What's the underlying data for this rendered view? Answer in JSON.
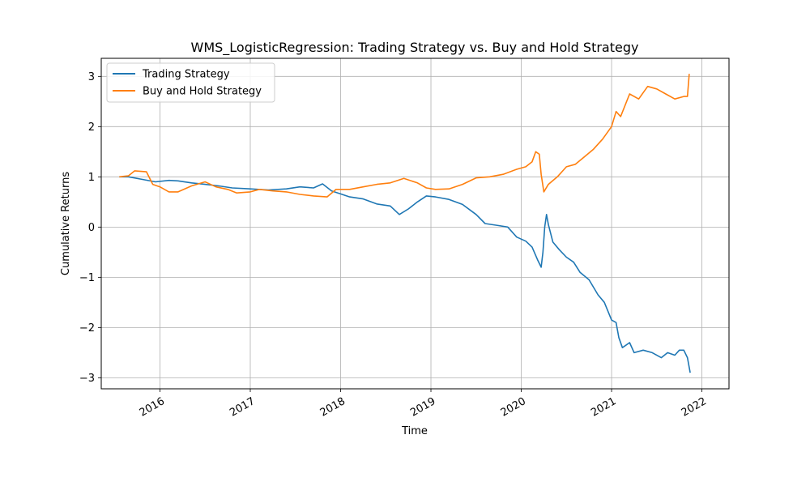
{
  "chart_data": {
    "type": "line",
    "title": "WMS_LogisticRegression: Trading Strategy vs. Buy and Hold Strategy",
    "xlabel": "Time",
    "ylabel": "Cumulative Returns",
    "xlim": [
      2015.35,
      2022.3
    ],
    "ylim": [
      -3.22,
      3.36
    ],
    "grid": true,
    "legend_position": "upper-left",
    "x_ticks": [
      {
        "value": 2016,
        "label": "2016"
      },
      {
        "value": 2017,
        "label": "2017"
      },
      {
        "value": 2018,
        "label": "2018"
      },
      {
        "value": 2019,
        "label": "2019"
      },
      {
        "value": 2020,
        "label": "2020"
      },
      {
        "value": 2021,
        "label": "2021"
      },
      {
        "value": 2022,
        "label": "2022"
      }
    ],
    "y_ticks": [
      {
        "value": 3,
        "label": "3"
      },
      {
        "value": 2,
        "label": "2"
      },
      {
        "value": 1,
        "label": "1"
      },
      {
        "value": 0,
        "label": "0"
      },
      {
        "value": -1,
        "label": "−1"
      },
      {
        "value": -2,
        "label": "−2"
      },
      {
        "value": -3,
        "label": "−3"
      }
    ],
    "series": [
      {
        "name": "Trading Strategy",
        "color": "#1f77b4",
        "points": [
          [
            2015.55,
            1.0
          ],
          [
            2015.65,
            1.0
          ],
          [
            2015.8,
            0.95
          ],
          [
            2015.95,
            0.9
          ],
          [
            2016.1,
            0.93
          ],
          [
            2016.2,
            0.92
          ],
          [
            2016.35,
            0.88
          ],
          [
            2016.5,
            0.85
          ],
          [
            2016.65,
            0.82
          ],
          [
            2016.8,
            0.78
          ],
          [
            2017.0,
            0.76
          ],
          [
            2017.2,
            0.74
          ],
          [
            2017.4,
            0.76
          ],
          [
            2017.55,
            0.8
          ],
          [
            2017.7,
            0.78
          ],
          [
            2017.8,
            0.86
          ],
          [
            2017.9,
            0.72
          ],
          [
            2018.0,
            0.66
          ],
          [
            2018.1,
            0.6
          ],
          [
            2018.25,
            0.56
          ],
          [
            2018.4,
            0.46
          ],
          [
            2018.55,
            0.42
          ],
          [
            2018.65,
            0.25
          ],
          [
            2018.75,
            0.36
          ],
          [
            2018.85,
            0.5
          ],
          [
            2018.95,
            0.62
          ],
          [
            2019.05,
            0.6
          ],
          [
            2019.2,
            0.55
          ],
          [
            2019.35,
            0.45
          ],
          [
            2019.5,
            0.25
          ],
          [
            2019.6,
            0.07
          ],
          [
            2019.75,
            0.03
          ],
          [
            2019.85,
            0.0
          ],
          [
            2019.95,
            -0.2
          ],
          [
            2020.05,
            -0.28
          ],
          [
            2020.12,
            -0.4
          ],
          [
            2020.18,
            -0.65
          ],
          [
            2020.22,
            -0.8
          ],
          [
            2020.24,
            -0.5
          ],
          [
            2020.26,
            0.0
          ],
          [
            2020.28,
            0.25
          ],
          [
            2020.3,
            0.05
          ],
          [
            2020.35,
            -0.3
          ],
          [
            2020.42,
            -0.45
          ],
          [
            2020.5,
            -0.6
          ],
          [
            2020.58,
            -0.7
          ],
          [
            2020.65,
            -0.9
          ],
          [
            2020.75,
            -1.05
          ],
          [
            2020.85,
            -1.35
          ],
          [
            2020.92,
            -1.5
          ],
          [
            2021.0,
            -1.85
          ],
          [
            2021.05,
            -1.9
          ],
          [
            2021.08,
            -2.2
          ],
          [
            2021.12,
            -2.4
          ],
          [
            2021.2,
            -2.3
          ],
          [
            2021.25,
            -2.5
          ],
          [
            2021.35,
            -2.45
          ],
          [
            2021.45,
            -2.5
          ],
          [
            2021.55,
            -2.6
          ],
          [
            2021.62,
            -2.5
          ],
          [
            2021.7,
            -2.55
          ],
          [
            2021.75,
            -2.45
          ],
          [
            2021.8,
            -2.45
          ],
          [
            2021.84,
            -2.6
          ],
          [
            2021.87,
            -2.9
          ]
        ]
      },
      {
        "name": "Buy and Hold Strategy",
        "color": "#ff7f0e",
        "points": [
          [
            2015.55,
            1.0
          ],
          [
            2015.65,
            1.02
          ],
          [
            2015.72,
            1.12
          ],
          [
            2015.85,
            1.1
          ],
          [
            2015.92,
            0.85
          ],
          [
            2016.0,
            0.8
          ],
          [
            2016.1,
            0.7
          ],
          [
            2016.2,
            0.7
          ],
          [
            2016.35,
            0.82
          ],
          [
            2016.5,
            0.9
          ],
          [
            2016.62,
            0.8
          ],
          [
            2016.75,
            0.75
          ],
          [
            2016.85,
            0.68
          ],
          [
            2017.0,
            0.7
          ],
          [
            2017.1,
            0.75
          ],
          [
            2017.25,
            0.72
          ],
          [
            2017.4,
            0.7
          ],
          [
            2017.55,
            0.65
          ],
          [
            2017.7,
            0.62
          ],
          [
            2017.85,
            0.6
          ],
          [
            2017.95,
            0.75
          ],
          [
            2018.1,
            0.75
          ],
          [
            2018.25,
            0.8
          ],
          [
            2018.4,
            0.85
          ],
          [
            2018.55,
            0.88
          ],
          [
            2018.7,
            0.97
          ],
          [
            2018.85,
            0.88
          ],
          [
            2018.95,
            0.78
          ],
          [
            2019.05,
            0.75
          ],
          [
            2019.2,
            0.76
          ],
          [
            2019.35,
            0.85
          ],
          [
            2019.5,
            0.98
          ],
          [
            2019.65,
            1.0
          ],
          [
            2019.8,
            1.05
          ],
          [
            2019.95,
            1.15
          ],
          [
            2020.05,
            1.2
          ],
          [
            2020.12,
            1.3
          ],
          [
            2020.16,
            1.5
          ],
          [
            2020.2,
            1.45
          ],
          [
            2020.22,
            1.05
          ],
          [
            2020.25,
            0.7
          ],
          [
            2020.3,
            0.85
          ],
          [
            2020.4,
            1.0
          ],
          [
            2020.5,
            1.2
          ],
          [
            2020.6,
            1.25
          ],
          [
            2020.7,
            1.4
          ],
          [
            2020.8,
            1.55
          ],
          [
            2020.9,
            1.75
          ],
          [
            2021.0,
            2.0
          ],
          [
            2021.05,
            2.3
          ],
          [
            2021.1,
            2.2
          ],
          [
            2021.2,
            2.65
          ],
          [
            2021.3,
            2.55
          ],
          [
            2021.4,
            2.8
          ],
          [
            2021.5,
            2.75
          ],
          [
            2021.6,
            2.65
          ],
          [
            2021.7,
            2.55
          ],
          [
            2021.8,
            2.6
          ],
          [
            2021.84,
            2.6
          ],
          [
            2021.86,
            3.05
          ]
        ]
      }
    ]
  }
}
